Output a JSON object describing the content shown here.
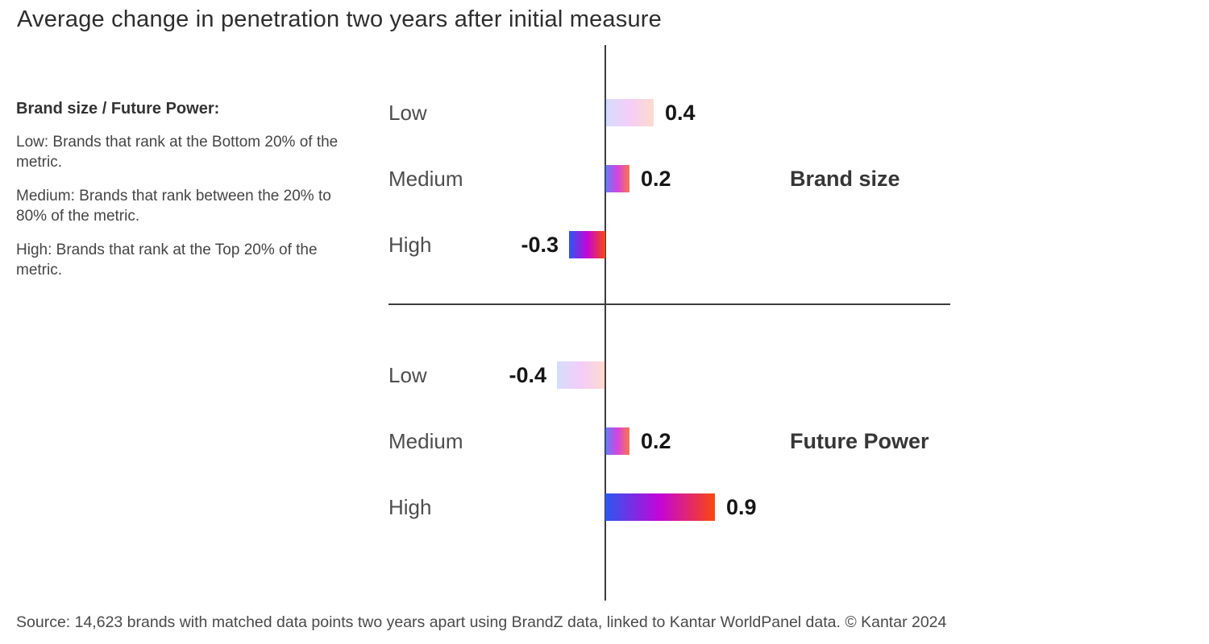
{
  "title": "Average change in penetration two years after initial measure",
  "legend": {
    "heading": "Brand size / Future Power:",
    "items": [
      {
        "term": "Low:",
        "definition": "Brands that rank at the Bottom 20% of the metric."
      },
      {
        "term": "Medium:",
        "definition": "Brands that rank between the 20% to 80% of the metric."
      },
      {
        "term": "High:",
        "definition": "Brands that rank at the Top 20% of the metric."
      }
    ]
  },
  "source": "Source: 14,623 brands with matched data points two years apart using BrandZ data, linked to Kantar WorldPanel data. © Kantar 2024",
  "chart_data": {
    "type": "bar",
    "orientation": "horizontal-diverging",
    "xlim": [
      -1.8,
      5.0
    ],
    "zero_baseline": true,
    "grid": false,
    "groups": [
      {
        "label": "Brand size",
        "rows": [
          {
            "category": "Low",
            "value": 0.4,
            "value_label": "0.4",
            "emphasis": "light"
          },
          {
            "category": "Medium",
            "value": 0.2,
            "value_label": "0.2",
            "emphasis": "medium"
          },
          {
            "category": "High",
            "value": -0.3,
            "value_label": "-0.3",
            "emphasis": "strong"
          }
        ]
      },
      {
        "label": "Future Power",
        "rows": [
          {
            "category": "Low",
            "value": -0.4,
            "value_label": "-0.4",
            "emphasis": "light"
          },
          {
            "category": "Medium",
            "value": 0.2,
            "value_label": "0.2",
            "emphasis": "medium"
          },
          {
            "category": "High",
            "value": 0.9,
            "value_label": "0.9",
            "emphasis": "strong"
          }
        ]
      }
    ],
    "colors": {
      "gradient": [
        "#2c57f0",
        "#c405d8",
        "#fb470e"
      ],
      "axis": "#3c3c3c",
      "value_text": "#161616",
      "category_text": "#4d4d4d"
    }
  }
}
